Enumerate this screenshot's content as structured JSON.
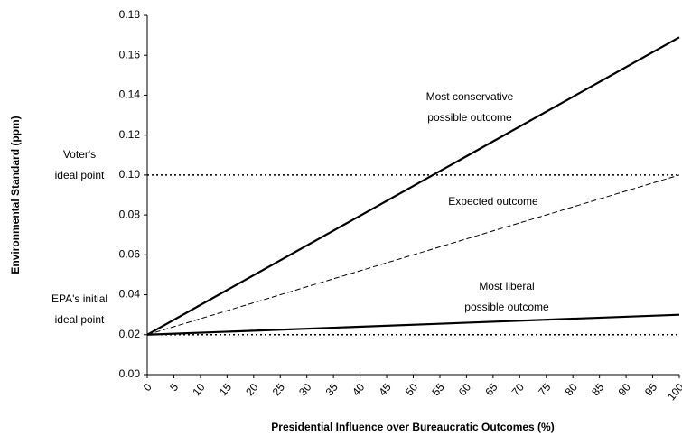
{
  "chart_data": {
    "type": "line",
    "x_label": "Presidential Influence over Bureaucratic Outcomes (%)",
    "y_label": "Environmental Standard (ppm)",
    "x": [
      0,
      100
    ],
    "series": [
      {
        "color": "#000000",
        "style": "solid",
        "values": [
          0.02,
          0.169
        ]
      },
      {
        "color": "#000000",
        "style": "dashed",
        "values": [
          0.02,
          0.1
        ]
      },
      {
        "color": "#000000",
        "style": "solid",
        "values": [
          0.02,
          0.03
        ]
      }
    ],
    "reference_lines": [
      {
        "value": 0.1,
        "label": [
          "Voter's",
          "ideal point"
        ]
      },
      {
        "value": 0.02,
        "label": [
          "EPA's initial",
          "ideal point"
        ]
      }
    ],
    "annotations": [
      {
        "text": [
          "Most conservative",
          "possible outcome"
        ]
      },
      {
        "text": [
          "Expected outcome"
        ]
      },
      {
        "text": [
          "Most liberal",
          "possible outcome"
        ]
      }
    ],
    "xlim": [
      0,
      100
    ],
    "xticks": [
      0,
      5,
      10,
      15,
      20,
      25,
      30,
      35,
      40,
      45,
      50,
      55,
      60,
      65,
      70,
      75,
      80,
      85,
      90,
      95,
      100
    ],
    "ylim": [
      0,
      0.18
    ],
    "yticks": [
      {
        "value": 0,
        "label": "0.00"
      },
      {
        "value": 0.02,
        "label": "0.02"
      },
      {
        "value": 0.04,
        "label": "0.04"
      },
      {
        "value": 0.06,
        "label": "0.06"
      },
      {
        "value": 0.08,
        "label": "0.08"
      },
      {
        "value": 0.1,
        "label": "0.10"
      },
      {
        "value": 0.12,
        "label": "0.12"
      },
      {
        "value": 0.14,
        "label": "0.14"
      },
      {
        "value": 0.16,
        "label": "0.16"
      },
      {
        "value": 0.18,
        "label": "0.18"
      }
    ]
  }
}
